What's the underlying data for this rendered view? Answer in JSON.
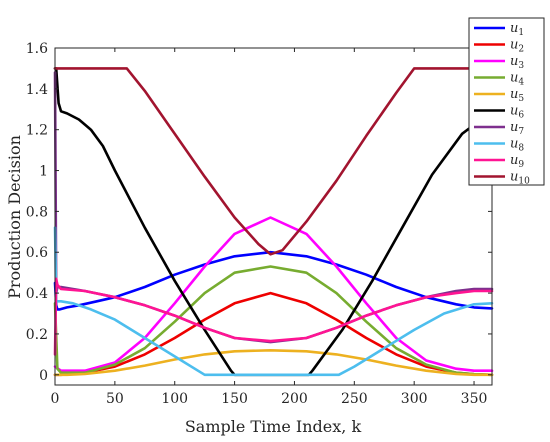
{
  "chart_data": {
    "type": "line",
    "xlabel": "Sample Time Index, k",
    "ylabel": "Production Decision",
    "xlim": [
      0,
      365
    ],
    "ylim": [
      -0.05,
      1.6
    ],
    "xticks": [
      0,
      50,
      100,
      150,
      200,
      250,
      300,
      350
    ],
    "yticks": [
      0,
      0.2,
      0.4,
      0.6,
      0.8,
      1,
      1.2,
      1.4,
      1.6
    ],
    "ytick_labels": [
      "0",
      "0.2",
      "0.4",
      "0.6",
      "0.8",
      "1",
      "1.2",
      "1.4",
      "1.6"
    ],
    "grid": false,
    "legend_position": "top-right",
    "series": [
      {
        "name": "u",
        "sub": "1",
        "color": "#0000ff",
        "x": [
          0,
          1,
          2,
          4,
          10,
          20,
          35,
          50,
          75,
          100,
          125,
          150,
          180,
          210,
          235,
          260,
          285,
          310,
          335,
          350,
          365
        ],
        "y": [
          0.45,
          0.34,
          0.32,
          0.32,
          0.33,
          0.34,
          0.36,
          0.38,
          0.43,
          0.49,
          0.54,
          0.58,
          0.6,
          0.58,
          0.54,
          0.49,
          0.43,
          0.38,
          0.345,
          0.33,
          0.325
        ]
      },
      {
        "name": "u",
        "sub": "2",
        "color": "#ee0000",
        "x": [
          0,
          5,
          25,
          50,
          75,
          100,
          125,
          150,
          180,
          210,
          235,
          260,
          285,
          310,
          335,
          350,
          365
        ],
        "y": [
          0.0,
          0.0,
          0.01,
          0.04,
          0.1,
          0.18,
          0.27,
          0.35,
          0.4,
          0.35,
          0.27,
          0.18,
          0.1,
          0.04,
          0.01,
          0.003,
          0.0
        ]
      },
      {
        "name": "u",
        "sub": "3",
        "color": "#ff00ff",
        "x": [
          0,
          5,
          25,
          50,
          75,
          100,
          125,
          150,
          180,
          210,
          235,
          260,
          285,
          310,
          335,
          350,
          365
        ],
        "y": [
          0.04,
          0.02,
          0.02,
          0.06,
          0.18,
          0.35,
          0.53,
          0.69,
          0.77,
          0.69,
          0.53,
          0.35,
          0.18,
          0.07,
          0.03,
          0.02,
          0.02
        ]
      },
      {
        "name": "u",
        "sub": "4",
        "color": "#77ac30",
        "x": [
          0,
          2,
          5,
          25,
          50,
          75,
          100,
          125,
          150,
          180,
          210,
          235,
          260,
          285,
          310,
          335,
          350,
          365
        ],
        "y": [
          0.35,
          0.03,
          0.01,
          0.01,
          0.05,
          0.13,
          0.26,
          0.4,
          0.5,
          0.53,
          0.5,
          0.4,
          0.26,
          0.13,
          0.05,
          0.01,
          0.003,
          0.0
        ]
      },
      {
        "name": "u",
        "sub": "5",
        "color": "#edb120",
        "x": [
          0,
          10,
          25,
          50,
          75,
          100,
          125,
          150,
          180,
          210,
          235,
          260,
          285,
          310,
          335,
          350,
          365
        ],
        "y": [
          0.0,
          0.0,
          0.004,
          0.02,
          0.045,
          0.075,
          0.1,
          0.115,
          0.12,
          0.115,
          0.1,
          0.075,
          0.045,
          0.02,
          0.004,
          0.0,
          0.0
        ]
      },
      {
        "name": "u",
        "sub": "6",
        "color": "#000000",
        "x": [
          0,
          1,
          3,
          5,
          10,
          20,
          30,
          40,
          50,
          75,
          100,
          125,
          147,
          150,
          180,
          212,
          215,
          240,
          265,
          290,
          315,
          340,
          365
        ],
        "y": [
          1.5,
          1.5,
          1.33,
          1.29,
          1.28,
          1.25,
          1.2,
          1.12,
          1.0,
          0.72,
          0.46,
          0.22,
          0.02,
          0.0,
          0.0,
          0.0,
          0.02,
          0.22,
          0.46,
          0.72,
          0.98,
          1.18,
          1.29
        ]
      },
      {
        "name": "u",
        "sub": "7",
        "color": "#7e2f8e",
        "x": [
          0,
          1,
          2,
          5,
          25,
          50,
          75,
          100,
          125,
          150,
          180,
          210,
          235,
          260,
          285,
          310,
          335,
          350,
          365
        ],
        "y": [
          1.48,
          0.4,
          0.43,
          0.43,
          0.41,
          0.38,
          0.34,
          0.29,
          0.23,
          0.18,
          0.16,
          0.18,
          0.23,
          0.29,
          0.34,
          0.38,
          0.41,
          0.42,
          0.42
        ]
      },
      {
        "name": "u",
        "sub": "8",
        "color": "#4dbeee",
        "x": [
          0,
          1,
          2,
          5,
          15,
          30,
          50,
          75,
          100,
          125,
          237,
          250,
          275,
          300,
          325,
          350,
          365
        ],
        "y": [
          0.72,
          0.36,
          0.36,
          0.36,
          0.35,
          0.32,
          0.27,
          0.18,
          0.09,
          0.0,
          0.0,
          0.04,
          0.13,
          0.22,
          0.3,
          0.345,
          0.35
        ]
      },
      {
        "name": "u",
        "sub": "9",
        "color": "#ff1493",
        "x": [
          0,
          1,
          2,
          5,
          25,
          50,
          75,
          100,
          125,
          150,
          180,
          210,
          235,
          260,
          285,
          310,
          335,
          350,
          365
        ],
        "y": [
          0.1,
          0.47,
          0.44,
          0.42,
          0.41,
          0.38,
          0.34,
          0.29,
          0.23,
          0.18,
          0.165,
          0.18,
          0.23,
          0.29,
          0.34,
          0.38,
          0.4,
          0.41,
          0.41
        ]
      },
      {
        "name": "u",
        "sub": "10",
        "color": "#a2142f",
        "x": [
          0,
          60,
          75,
          100,
          125,
          150,
          170,
          180,
          190,
          210,
          235,
          260,
          285,
          300,
          365
        ],
        "y": [
          1.5,
          1.5,
          1.39,
          1.18,
          0.97,
          0.77,
          0.64,
          0.59,
          0.61,
          0.75,
          0.95,
          1.17,
          1.38,
          1.5,
          1.5
        ]
      }
    ]
  }
}
